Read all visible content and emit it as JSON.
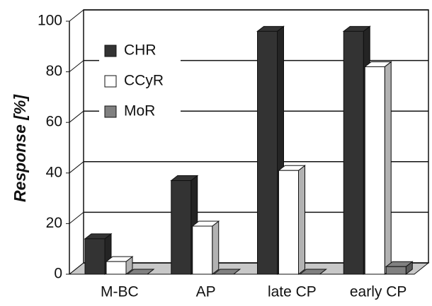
{
  "chart_data": {
    "type": "bar3d",
    "y_label": "Response [%]",
    "categories": [
      "M-BC",
      "AP",
      "late CP",
      "early CP"
    ],
    "series": [
      {
        "name": "CHR",
        "color": "#333333",
        "values": [
          14,
          37,
          96,
          96
        ]
      },
      {
        "name": "CCyR",
        "color": "#ffffff",
        "values": [
          5,
          19,
          41,
          82
        ]
      },
      {
        "name": "MoR",
        "color": "#808080",
        "values": [
          0,
          0,
          0,
          3
        ]
      }
    ],
    "ylim": [
      0,
      100
    ],
    "yticks": [
      0,
      20,
      40,
      60,
      80,
      100
    ],
    "grid": true,
    "legend": "top-left"
  }
}
